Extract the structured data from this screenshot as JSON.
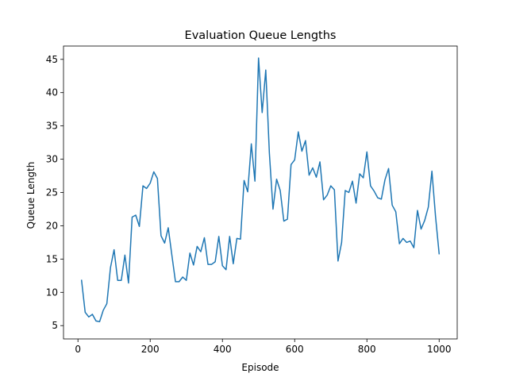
{
  "chart_data": {
    "type": "line",
    "title": "Evaluation Queue Lengths",
    "xlabel": "Episode",
    "ylabel": "Queue Length",
    "xlim": [
      -40,
      1050
    ],
    "ylim": [
      3.0,
      47.0
    ],
    "xticks": [
      0,
      200,
      400,
      600,
      800,
      1000
    ],
    "yticks": [
      5,
      10,
      15,
      20,
      25,
      30,
      35,
      40,
      45
    ],
    "grid": false,
    "color": "#1f77b4",
    "series": [
      {
        "x": [
          10,
          20,
          30,
          40,
          50,
          60,
          70,
          80,
          90,
          100,
          110,
          120,
          130,
          140,
          150,
          160,
          170,
          180,
          190,
          200,
          210,
          220,
          230,
          240,
          250,
          260,
          270,
          280,
          290,
          300,
          310,
          320,
          330,
          340,
          350,
          360,
          370,
          380,
          390,
          400,
          410,
          420,
          430,
          440,
          450,
          460,
          470,
          480,
          490,
          500,
          510,
          520,
          530,
          540,
          550,
          560,
          570,
          580,
          590,
          600,
          610,
          620,
          630,
          640,
          650,
          660,
          670,
          680,
          690,
          700,
          710,
          720,
          730,
          740,
          750,
          760,
          770,
          780,
          790,
          800,
          810,
          820,
          830,
          840,
          850,
          860,
          870,
          880,
          890,
          900,
          910,
          920,
          930,
          940,
          950,
          960,
          970,
          980,
          990,
          1000
        ],
        "values": [
          11.8,
          7.0,
          6.3,
          6.7,
          5.7,
          5.6,
          7.3,
          8.3,
          13.7,
          16.4,
          11.8,
          11.8,
          15.6,
          11.4,
          21.3,
          21.6,
          19.9,
          26.0,
          25.6,
          26.4,
          28.1,
          27.1,
          18.5,
          17.4,
          19.7,
          15.6,
          11.6,
          11.6,
          12.3,
          11.8,
          15.9,
          14.1,
          16.9,
          16.1,
          18.2,
          14.2,
          14.2,
          14.6,
          18.4,
          14.0,
          13.4,
          18.4,
          14.3,
          18.1,
          18.0,
          26.8,
          25.1,
          32.3,
          26.7,
          45.2,
          37.0,
          43.4,
          30.9,
          22.5,
          27.0,
          25.3,
          20.7,
          21.0,
          29.2,
          29.9,
          34.1,
          31.2,
          32.8,
          27.6,
          28.7,
          27.3,
          29.6,
          23.9,
          24.6,
          26.0,
          25.4,
          14.7,
          17.5,
          25.3,
          25.0,
          26.7,
          23.4,
          27.8,
          27.2,
          31.1,
          26.0,
          25.2,
          24.2,
          24.0,
          26.9,
          28.6,
          23.1,
          22.1,
          17.3,
          18.1,
          17.5,
          17.7,
          16.7,
          22.3,
          19.5,
          20.8,
          22.8,
          28.2,
          21.4,
          15.8
        ]
      }
    ]
  }
}
